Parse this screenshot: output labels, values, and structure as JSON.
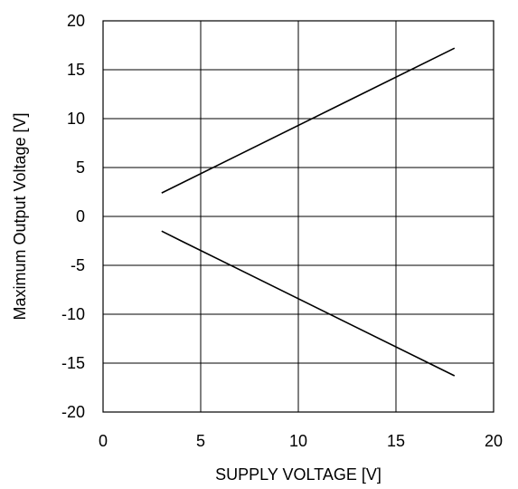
{
  "chart_data": {
    "type": "line",
    "xlabel": "SUPPLY VOLTAGE [V]",
    "ylabel": "Maximum Output Voltage [V]",
    "xlim": [
      0,
      20
    ],
    "ylim": [
      -20,
      20
    ],
    "xticks": [
      "0",
      "5",
      "10",
      "15",
      "20"
    ],
    "yticks": [
      "20",
      "15",
      "10",
      "5",
      "0",
      "-5",
      "-10",
      "-15",
      "-20"
    ],
    "grid": true,
    "series": [
      {
        "x": [
          3,
          18
        ],
        "y": [
          2.4,
          17.2
        ]
      },
      {
        "x": [
          3,
          4,
          18
        ],
        "y": [
          -1.5,
          -2.5,
          -16.3
        ]
      }
    ]
  },
  "colors": {
    "line": "#000000",
    "grid": "#000000",
    "background": "#ffffff"
  }
}
